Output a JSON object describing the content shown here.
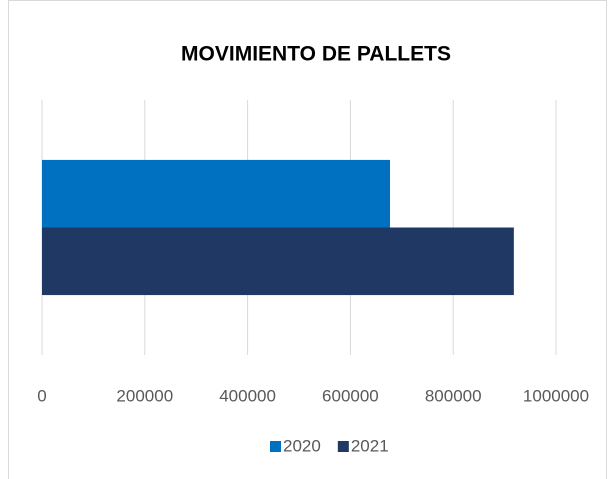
{
  "chart_data": {
    "type": "hbar",
    "title": "MOVIMIENTO DE PALLETS",
    "categories": [
      null
    ],
    "series": [
      {
        "name": "2020",
        "color": "#0070c0",
        "values": [
          677000
        ]
      },
      {
        "name": "2021",
        "color": "#203864",
        "values": [
          918000
        ]
      }
    ],
    "xlim": [
      0,
      1000000
    ],
    "xticks": [
      0,
      200000,
      400000,
      600000,
      800000,
      1000000
    ],
    "grid": true,
    "legend": "bottom"
  }
}
